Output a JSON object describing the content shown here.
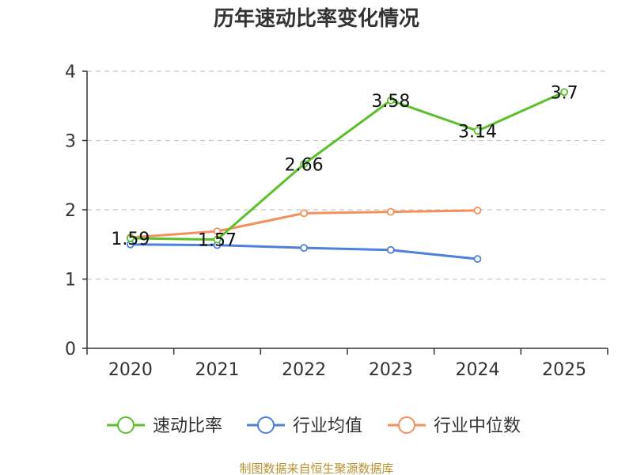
{
  "chart_data": {
    "type": "line",
    "title": "历年速动比率变化情况",
    "categories": [
      "2020",
      "2021",
      "2022",
      "2023",
      "2024",
      "2025"
    ],
    "ylim": [
      0,
      4
    ],
    "yticks": [
      0,
      1,
      2,
      3,
      4
    ],
    "grid": true,
    "legend_position": "bottom",
    "series": [
      {
        "name": "速动比率",
        "color": "#5cc02a",
        "values": [
          1.59,
          1.57,
          2.66,
          3.58,
          3.14,
          3.7
        ],
        "labels": [
          "1.59",
          "1.57",
          "2.66",
          "3.58",
          "3.14",
          "3.7"
        ]
      },
      {
        "name": "行业均值",
        "color": "#4f7fdc",
        "values": [
          1.5,
          1.49,
          1.45,
          1.42,
          1.29,
          null
        ],
        "labels": []
      },
      {
        "name": "行业中位数",
        "color": "#f5905e",
        "values": [
          1.6,
          1.69,
          1.95,
          1.97,
          1.99,
          null
        ],
        "labels": []
      }
    ],
    "source": "制图数据来自恒生聚源数据库"
  }
}
